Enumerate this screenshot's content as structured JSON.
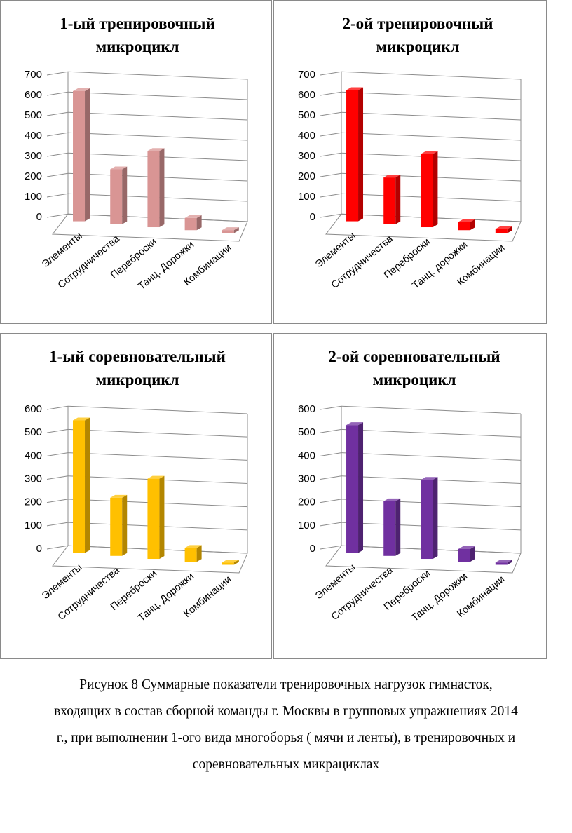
{
  "chart_data": [
    {
      "type": "bar",
      "title": [
        "1-ый тренировочный",
        "микроцикл"
      ],
      "categories": [
        "Элементы",
        "Сотрудничества",
        "Переброски",
        "Танц. Дорожки",
        "Комбинации"
      ],
      "values": [
        640,
        270,
        375,
        60,
        15
      ],
      "ylim": [
        0,
        700
      ],
      "yticks": [
        0,
        100,
        200,
        300,
        400,
        500,
        600,
        700
      ],
      "color": "#d99594",
      "grid": true
    },
    {
      "type": "bar",
      "title": [
        "2-ой тренировочный",
        "микроцикл"
      ],
      "categories": [
        "Элементы",
        "Сотрудничества",
        "Переброски",
        "Танц. дорожки",
        "Комбинации"
      ],
      "values": [
        645,
        230,
        360,
        40,
        20
      ],
      "ylim": [
        0,
        700
      ],
      "yticks": [
        0,
        100,
        200,
        300,
        400,
        500,
        600,
        700
      ],
      "color": "#ff0000",
      "grid": true
    },
    {
      "type": "bar",
      "title": [
        "1-ый соревновательный",
        "микроцикл"
      ],
      "categories": [
        "Элементы",
        "Сотрудничества",
        "Переброски",
        "Танц. Дорожки",
        "Комбинации"
      ],
      "values": [
        570,
        250,
        345,
        60,
        10
      ],
      "ylim": [
        0,
        600
      ],
      "yticks": [
        0,
        100,
        200,
        300,
        400,
        500,
        600
      ],
      "color": "#ffc000",
      "grid": true
    },
    {
      "type": "bar",
      "title": [
        "2-ой соревновательный",
        "микроцикл"
      ],
      "categories": [
        "Элементы",
        "Сотрудничества",
        "Переброски",
        "Танц. Дорожки",
        "Комбинации"
      ],
      "values": [
        550,
        235,
        340,
        55,
        10
      ],
      "ylim": [
        0,
        600
      ],
      "yticks": [
        0,
        100,
        200,
        300,
        400,
        500,
        600
      ],
      "color": "#7030a0",
      "grid": true
    }
  ],
  "caption": [
    "Рисунок 8  Суммарные показатели тренировочных нагрузок гимнасток,",
    "входящих в состав сборной  команды г. Москвы в групповых упражнениях 2014",
    "г., при выполнении 1-ого вида многоборья ( мячи и ленты), в тренировочных и",
    "соревновательных микрациклах"
  ]
}
